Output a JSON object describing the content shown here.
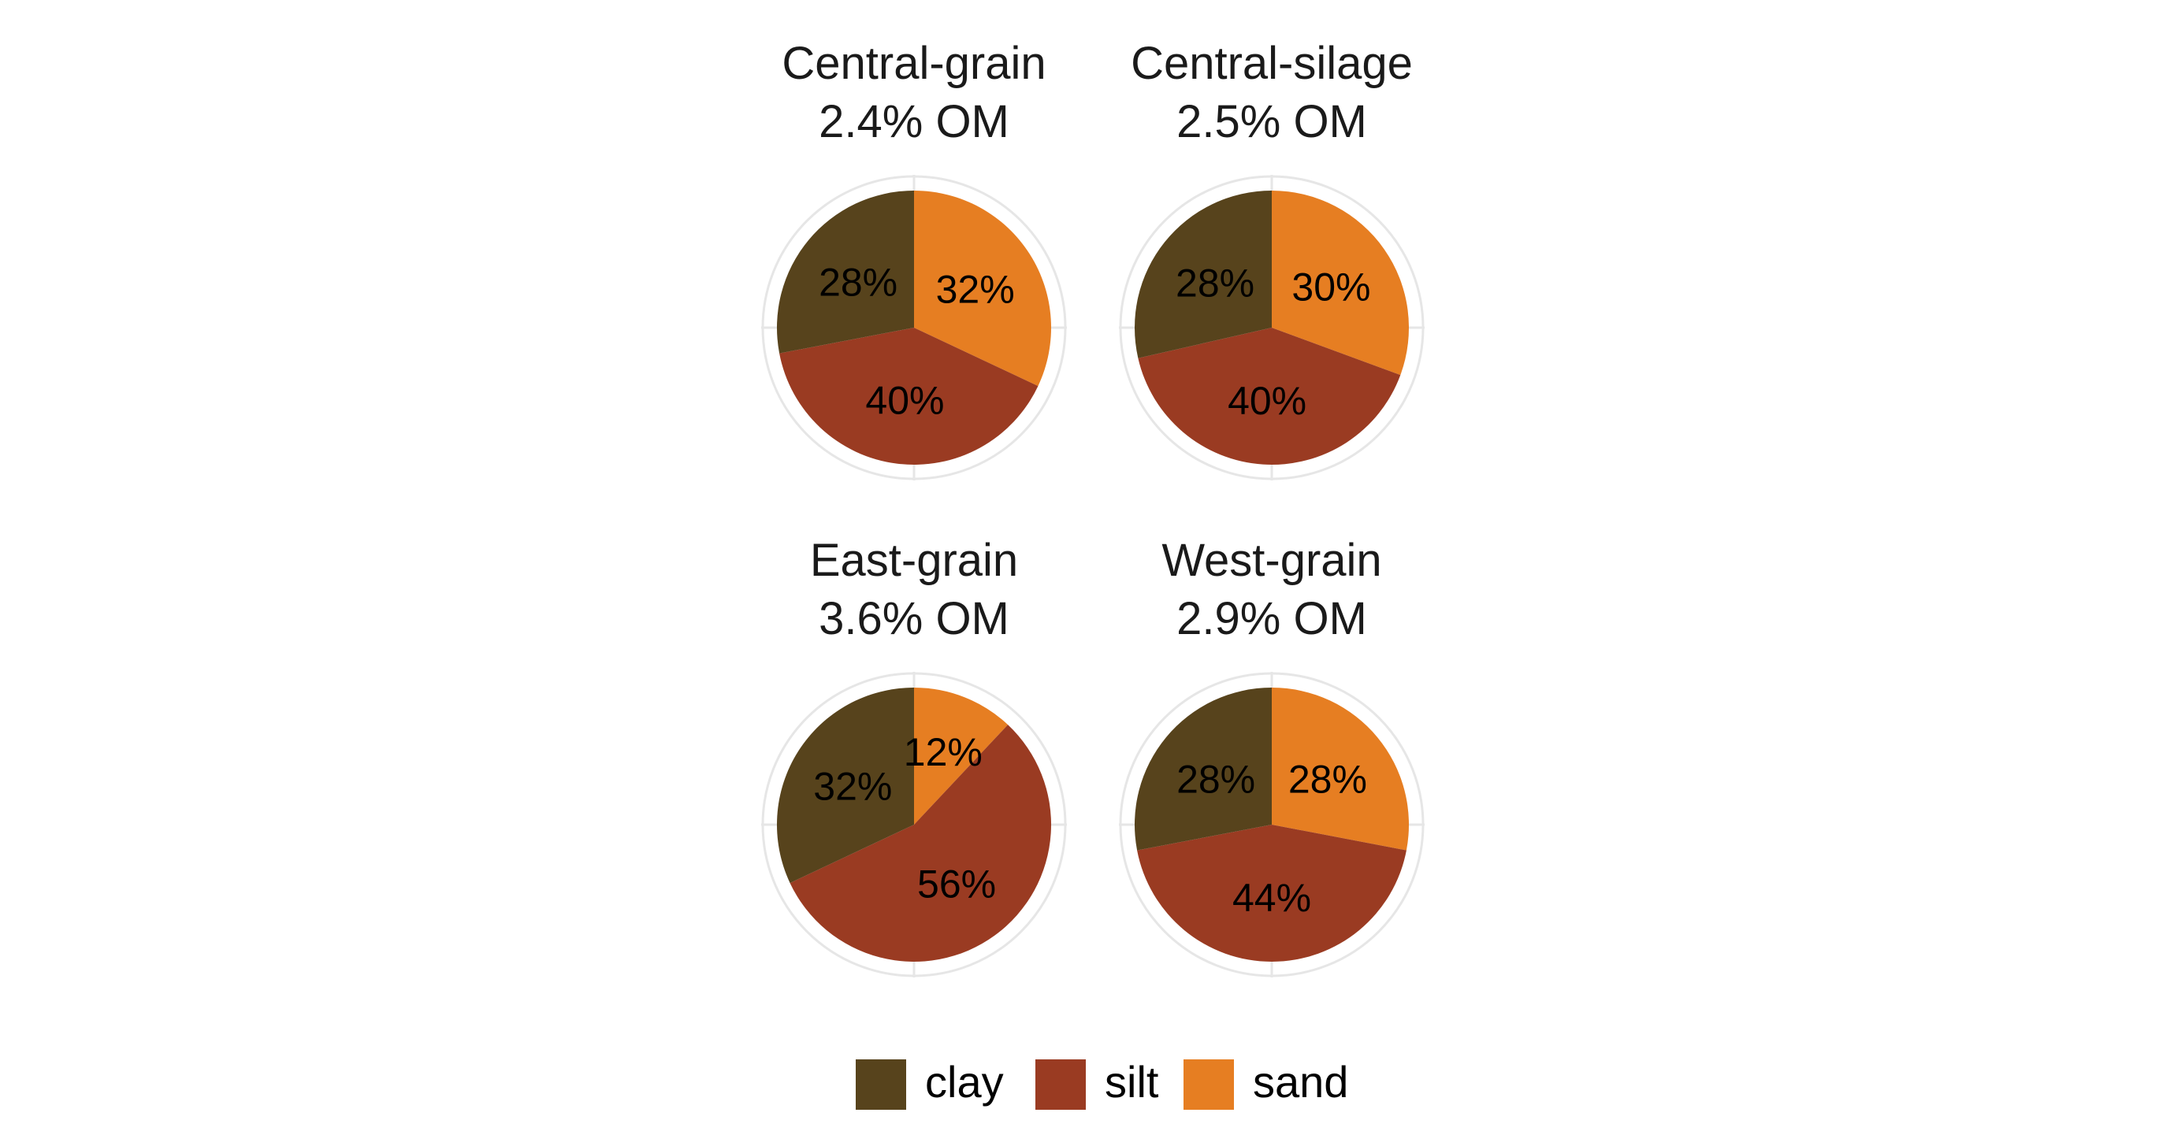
{
  "chart_data": {
    "type": "pie",
    "categories": [
      "clay",
      "silt",
      "sand"
    ],
    "colors": {
      "clay": "#57431C",
      "silt": "#9A3B22",
      "sand": "#E67E22"
    },
    "panels": [
      {
        "title": "Central-grain",
        "subtitle": "2.4% OM",
        "values": {
          "sand": 32,
          "silt": 40,
          "clay": 28
        },
        "labels": {
          "sand": "32%",
          "silt": "40%",
          "clay": "28%"
        }
      },
      {
        "title": "Central-silage",
        "subtitle": "2.5% OM",
        "values": {
          "sand": 30,
          "silt": 40,
          "clay": 28
        },
        "labels": {
          "sand": "30%",
          "silt": "40%",
          "clay": "28%"
        }
      },
      {
        "title": "East-grain",
        "subtitle": "3.6% OM",
        "values": {
          "sand": 12,
          "silt": 56,
          "clay": 32
        },
        "labels": {
          "sand": "12%",
          "silt": "56%",
          "clay": "32%"
        }
      },
      {
        "title": "West-grain",
        "subtitle": "2.9% OM",
        "values": {
          "sand": 28,
          "silt": 44,
          "clay": 28
        },
        "labels": {
          "sand": "28%",
          "silt": "44%",
          "clay": "28%"
        }
      }
    ],
    "legend": {
      "position": "bottom",
      "items": [
        "clay",
        "silt",
        "sand"
      ]
    }
  }
}
